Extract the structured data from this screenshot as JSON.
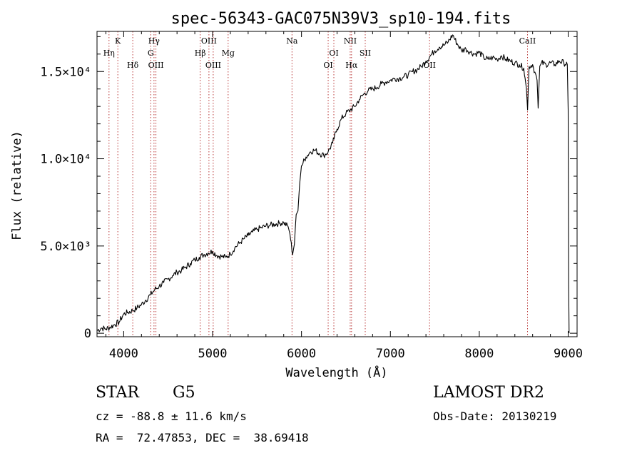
{
  "chart_data": {
    "type": "line",
    "title": "spec-56343-GAC075N39V3_sp10-194.fits",
    "xlabel": "Wavelength (Å)",
    "ylabel": "Flux (relative)",
    "xlim": [
      3700,
      9100
    ],
    "ylim": [
      -200,
      17300
    ],
    "x_ticks": [
      {
        "value": 4000,
        "label": "4000"
      },
      {
        "value": 5000,
        "label": "5000"
      },
      {
        "value": 6000,
        "label": "6000"
      },
      {
        "value": 7000,
        "label": "7000"
      },
      {
        "value": 8000,
        "label": "8000"
      },
      {
        "value": 9000,
        "label": "9000"
      }
    ],
    "y_ticks": [
      {
        "value": 0,
        "label": "0"
      },
      {
        "value": 5000,
        "label": "5.0×10³"
      },
      {
        "value": 10000,
        "label": "1.0×10⁴"
      },
      {
        "value": 15000,
        "label": "1.5×10⁴"
      }
    ],
    "line_color": "#000000",
    "marker_color": "#b22222",
    "series": [
      {
        "values": [
          [
            3700,
            150
          ],
          [
            3750,
            300
          ],
          [
            3800,
            250
          ],
          [
            3850,
            350
          ],
          [
            3900,
            500
          ],
          [
            3950,
            650
          ],
          [
            4000,
            1100
          ],
          [
            4050,
            1200
          ],
          [
            4100,
            1300
          ],
          [
            4150,
            1450
          ],
          [
            4200,
            1650
          ],
          [
            4250,
            1900
          ],
          [
            4300,
            2200
          ],
          [
            4350,
            2500
          ],
          [
            4400,
            2700
          ],
          [
            4450,
            2900
          ],
          [
            4500,
            3100
          ],
          [
            4550,
            3300
          ],
          [
            4600,
            3500
          ],
          [
            4650,
            3600
          ],
          [
            4700,
            3800
          ],
          [
            4750,
            4000
          ],
          [
            4800,
            4200
          ],
          [
            4850,
            4350
          ],
          [
            4900,
            4500
          ],
          [
            4950,
            4600
          ],
          [
            5000,
            4700
          ],
          [
            5050,
            4450
          ],
          [
            5100,
            4400
          ],
          [
            5150,
            4350
          ],
          [
            5200,
            4550
          ],
          [
            5250,
            4900
          ],
          [
            5300,
            5150
          ],
          [
            5350,
            5400
          ],
          [
            5400,
            5600
          ],
          [
            5450,
            5800
          ],
          [
            5500,
            5950
          ],
          [
            5550,
            6050
          ],
          [
            5600,
            6150
          ],
          [
            5650,
            6200
          ],
          [
            5700,
            6250
          ],
          [
            5750,
            6300
          ],
          [
            5800,
            6350
          ],
          [
            5850,
            6100
          ],
          [
            5870,
            5700
          ],
          [
            5900,
            4500
          ],
          [
            5920,
            5100
          ],
          [
            5940,
            6800
          ],
          [
            5960,
            7000
          ],
          [
            5980,
            8600
          ],
          [
            6000,
            9600
          ],
          [
            6050,
            10100
          ],
          [
            6100,
            10400
          ],
          [
            6150,
            10500
          ],
          [
            6200,
            10300
          ],
          [
            6250,
            10200
          ],
          [
            6300,
            10400
          ],
          [
            6350,
            10900
          ],
          [
            6400,
            11700
          ],
          [
            6450,
            12300
          ],
          [
            6500,
            12600
          ],
          [
            6550,
            12800
          ],
          [
            6600,
            13000
          ],
          [
            6650,
            13400
          ],
          [
            6700,
            13700
          ],
          [
            6750,
            13900
          ],
          [
            6800,
            14000
          ],
          [
            6850,
            14100
          ],
          [
            6900,
            14300
          ],
          [
            6950,
            14400
          ],
          [
            7000,
            14500
          ],
          [
            7050,
            14600
          ],
          [
            7100,
            14600
          ],
          [
            7150,
            14700
          ],
          [
            7200,
            14800
          ],
          [
            7250,
            15000
          ],
          [
            7300,
            15100
          ],
          [
            7350,
            15300
          ],
          [
            7400,
            15600
          ],
          [
            7450,
            15900
          ],
          [
            7500,
            16200
          ],
          [
            7550,
            16400
          ],
          [
            7600,
            16500
          ],
          [
            7650,
            16700
          ],
          [
            7700,
            17100
          ],
          [
            7750,
            16600
          ],
          [
            7800,
            16200
          ],
          [
            7850,
            16300
          ],
          [
            7900,
            16100
          ],
          [
            7950,
            16000
          ],
          [
            8000,
            16100
          ],
          [
            8050,
            15800
          ],
          [
            8100,
            15700
          ],
          [
            8150,
            15800
          ],
          [
            8200,
            15700
          ],
          [
            8250,
            15900
          ],
          [
            8300,
            15700
          ],
          [
            8350,
            15600
          ],
          [
            8400,
            15500
          ],
          [
            8450,
            15400
          ],
          [
            8500,
            15200
          ],
          [
            8530,
            14000
          ],
          [
            8543,
            12800
          ],
          [
            8560,
            15300
          ],
          [
            8600,
            15400
          ],
          [
            8650,
            14500
          ],
          [
            8662,
            12900
          ],
          [
            8680,
            15300
          ],
          [
            8700,
            15500
          ],
          [
            8750,
            15400
          ],
          [
            8800,
            15500
          ],
          [
            8850,
            15400
          ],
          [
            8900,
            15600
          ],
          [
            8950,
            15500
          ],
          [
            8990,
            15400
          ],
          [
            9000,
            12800
          ],
          [
            9005,
            2700
          ],
          [
            9010,
            0
          ]
        ]
      }
    ],
    "line_markers": [
      {
        "wavelength": 3835,
        "label": "Hη",
        "row": 2
      },
      {
        "wavelength": 3934,
        "label": "K",
        "row": 1
      },
      {
        "wavelength": 4102,
        "label": "Hδ",
        "row": 3
      },
      {
        "wavelength": 4304,
        "label": "G",
        "row": 2
      },
      {
        "wavelength": 4341,
        "label": "Hγ",
        "row": 1
      },
      {
        "wavelength": 4363,
        "label": "OIII",
        "row": 3
      },
      {
        "wavelength": 4861,
        "label": "Hβ",
        "row": 2
      },
      {
        "wavelength": 4959,
        "label": "OIII",
        "row": 1
      },
      {
        "wavelength": 5007,
        "label": "OIII",
        "row": 3
      },
      {
        "wavelength": 5175,
        "label": "Mg",
        "row": 2
      },
      {
        "wavelength": 5893,
        "label": "Na",
        "row": 1
      },
      {
        "wavelength": 6300,
        "label": "OI",
        "row": 3
      },
      {
        "wavelength": 6364,
        "label": "OI",
        "row": 2
      },
      {
        "wavelength": 6548,
        "label": "NII",
        "row": 1
      },
      {
        "wavelength": 6563,
        "label": "Hα",
        "row": 3
      },
      {
        "wavelength": 6717,
        "label": "SII",
        "row": 2
      },
      {
        "wavelength": 7440,
        "label": "OII",
        "row": 3
      },
      {
        "wavelength": 8542,
        "label": "CaII",
        "row": 1
      }
    ]
  },
  "info": {
    "object_class": "STAR",
    "subclass": "G5",
    "survey": "LAMOST DR2",
    "cz": "cz = -88.8 ± 11.6 km/s",
    "obs_date": "Obs-Date: 20130219",
    "ra_dec": "RA =  72.47853, DEC =  38.69418"
  }
}
